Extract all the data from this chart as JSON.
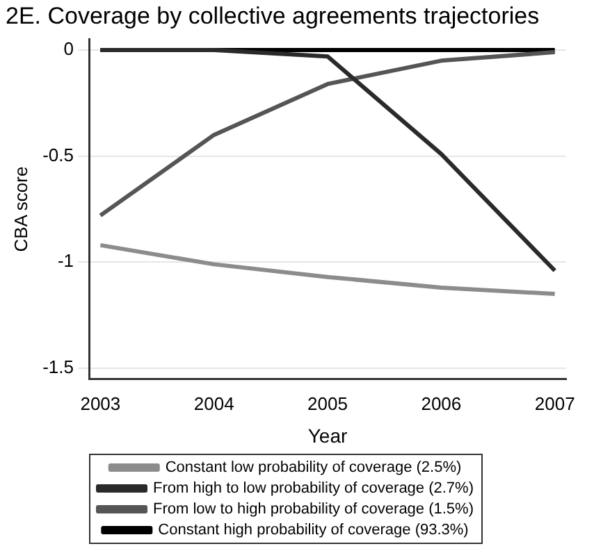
{
  "chart_data": {
    "type": "line",
    "title": "2E. Coverage by collective agreements trajectories",
    "xlabel": "Year",
    "ylabel": "CBA score",
    "x": [
      2003,
      2004,
      2005,
      2006,
      2007
    ],
    "series": [
      {
        "name": "Constant low probability of coverage (2.5%)",
        "color": "#8c8c8c",
        "values": [
          -0.92,
          -1.01,
          -1.07,
          -1.12,
          -1.15
        ]
      },
      {
        "name": "From high to low probability of coverage (2.7%)",
        "color": "#2a2a2a",
        "values": [
          0,
          0,
          -0.03,
          -0.49,
          -1.04
        ]
      },
      {
        "name": "From low to high probability of coverage (1.5%)",
        "color": "#555555",
        "values": [
          -0.78,
          -0.4,
          -0.16,
          -0.05,
          -0.01
        ]
      },
      {
        "name": "Constant high probability of coverage (93.3%)",
        "color": "#000000",
        "values": [
          0,
          0,
          0,
          0,
          0
        ]
      }
    ],
    "xlim": [
      2002.9,
      2007.1
    ],
    "xticks": [
      2003,
      2004,
      2005,
      2006,
      2007
    ],
    "ylim": [
      -1.55,
      0.05
    ],
    "yticks": [
      -1.5,
      -1,
      -0.5,
      0
    ],
    "grid": "y",
    "legend": "bottom",
    "marker": "none",
    "line_style": "solid"
  }
}
